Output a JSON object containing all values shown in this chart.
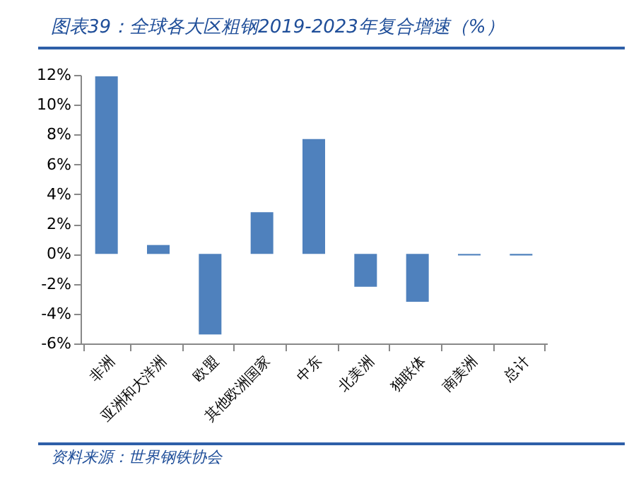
{
  "chart_data": {
    "type": "bar",
    "title": "图表39：全球各大区粗钢2019-2023年复合增速（%）",
    "categories": [
      "非洲",
      "亚洲和大洋洲",
      "欧盟",
      "其他欧洲国家",
      "中东",
      "北美洲",
      "独联体",
      "南美洲",
      "总计"
    ],
    "values": [
      11.9,
      0.6,
      -5.4,
      2.8,
      7.7,
      -2.2,
      -3.2,
      -0.1,
      -0.1
    ],
    "color": "#4f81bd",
    "ylim": [
      -6,
      12
    ],
    "yticks": [
      {
        "value": -6,
        "label": "-6%"
      },
      {
        "value": -4,
        "label": "-4%"
      },
      {
        "value": -2,
        "label": "-2%"
      },
      {
        "value": 0,
        "label": "0%"
      },
      {
        "value": 2,
        "label": "2%"
      },
      {
        "value": 4,
        "label": "4%"
      },
      {
        "value": 6,
        "label": "6%"
      },
      {
        "value": 8,
        "label": "8%"
      },
      {
        "value": 10,
        "label": "10%"
      },
      {
        "value": 12,
        "label": "12%"
      }
    ],
    "annotations": [
      "资料来源：世界钢铁协会"
    ]
  }
}
